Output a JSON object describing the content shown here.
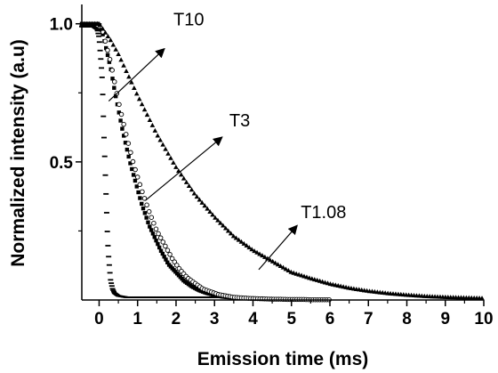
{
  "chart_data": {
    "type": "scatter",
    "xlabel": "Emission time (ms)",
    "ylabel": "Normalized intensity (a.u)",
    "xlim": [
      -0.45,
      10
    ],
    "ylim": [
      0,
      1.07
    ],
    "x_ticks": [
      0,
      1,
      2,
      3,
      4,
      5,
      6,
      7,
      8,
      9,
      10
    ],
    "x_tick_labels": [
      "0",
      "1",
      "2",
      "3",
      "4",
      "5",
      "6",
      "7",
      "8",
      "9",
      "10"
    ],
    "y_ticks": [
      0.5,
      1.0
    ],
    "y_tick_labels": [
      "0.5",
      "1.0"
    ],
    "grid": false,
    "series": [
      {
        "name": "T10",
        "marker": "dash",
        "x": [
          -0.45,
          -0.3,
          -0.15,
          -0.05,
          0.0,
          0.05,
          0.08,
          0.1,
          0.12,
          0.15,
          0.18,
          0.2,
          0.22,
          0.25,
          0.28,
          0.3,
          0.35,
          0.4,
          0.5,
          0.7,
          1.0,
          1.5,
          2.0,
          2.5,
          3.0,
          3.5
        ],
        "y": [
          0.99,
          0.99,
          0.99,
          0.98,
          0.95,
          0.86,
          0.8,
          0.72,
          0.62,
          0.5,
          0.38,
          0.3,
          0.22,
          0.15,
          0.1,
          0.07,
          0.04,
          0.025,
          0.015,
          0.01,
          0.01,
          0.01,
          0.01,
          0.01,
          0.01,
          0.01
        ]
      },
      {
        "name": "T3",
        "marker": "square",
        "x": [
          -0.45,
          -0.3,
          -0.1,
          0.0,
          0.1,
          0.2,
          0.3,
          0.4,
          0.5,
          0.6,
          0.7,
          0.8,
          0.9,
          1.0,
          1.1,
          1.2,
          1.3,
          1.4,
          1.5,
          1.6,
          1.8,
          2.0,
          2.2,
          2.4,
          2.6,
          2.8,
          3.0,
          3.2,
          3.5
        ],
        "y": [
          1.0,
          1.0,
          1.0,
          1.0,
          0.96,
          0.9,
          0.84,
          0.76,
          0.69,
          0.62,
          0.56,
          0.5,
          0.45,
          0.4,
          0.35,
          0.31,
          0.27,
          0.24,
          0.21,
          0.18,
          0.13,
          0.1,
          0.07,
          0.05,
          0.035,
          0.025,
          0.018,
          0.012,
          0.008
        ]
      },
      {
        "name": "",
        "marker": "open-circle",
        "x": [
          0.1,
          0.3,
          0.5,
          0.7,
          0.9,
          1.1,
          1.3,
          1.5,
          1.7,
          1.9,
          2.1,
          2.3,
          2.5,
          2.7,
          2.9,
          3.1,
          3.3,
          3.5,
          3.7,
          3.9,
          4.1,
          4.3,
          4.5,
          4.7,
          4.9,
          5.1,
          5.3,
          5.5,
          5.7,
          5.9,
          6.0
        ],
        "y": [
          0.97,
          0.86,
          0.72,
          0.6,
          0.49,
          0.4,
          0.32,
          0.25,
          0.2,
          0.15,
          0.11,
          0.08,
          0.06,
          0.04,
          0.03,
          0.02,
          0.015,
          0.01,
          0.008,
          0.006,
          0.005,
          0.004,
          0.003,
          0.003,
          0.002,
          0.002,
          0.002,
          0.001,
          0.001,
          0.001,
          0.001
        ]
      },
      {
        "name": "T1.08",
        "marker": "triangle",
        "x": [
          -0.45,
          -0.3,
          -0.1,
          0.0,
          0.3,
          0.5,
          0.8,
          1.0,
          1.5,
          2.0,
          2.5,
          3.0,
          3.5,
          4.0,
          4.5,
          5.0,
          5.5,
          6.0,
          6.5,
          7.0,
          7.5,
          8.0,
          8.5,
          9.0,
          9.5,
          10.0
        ],
        "y": [
          1.0,
          1.0,
          1.0,
          1.0,
          0.94,
          0.89,
          0.8,
          0.74,
          0.6,
          0.48,
          0.38,
          0.3,
          0.23,
          0.18,
          0.14,
          0.1,
          0.078,
          0.058,
          0.043,
          0.032,
          0.024,
          0.018,
          0.013,
          0.01,
          0.008,
          0.006
        ]
      }
    ],
    "annotations": [
      {
        "text": "T10",
        "arrow_from": [
          0.25,
          0.72
        ],
        "arrow_to": [
          1.7,
          0.91
        ]
      },
      {
        "text": "T3",
        "arrow_from": [
          1.2,
          0.36
        ],
        "arrow_to": [
          3.2,
          0.59
        ]
      },
      {
        "text": "T1.08",
        "arrow_from": [
          4.15,
          0.11
        ],
        "arrow_to": [
          5.15,
          0.27
        ]
      }
    ]
  }
}
